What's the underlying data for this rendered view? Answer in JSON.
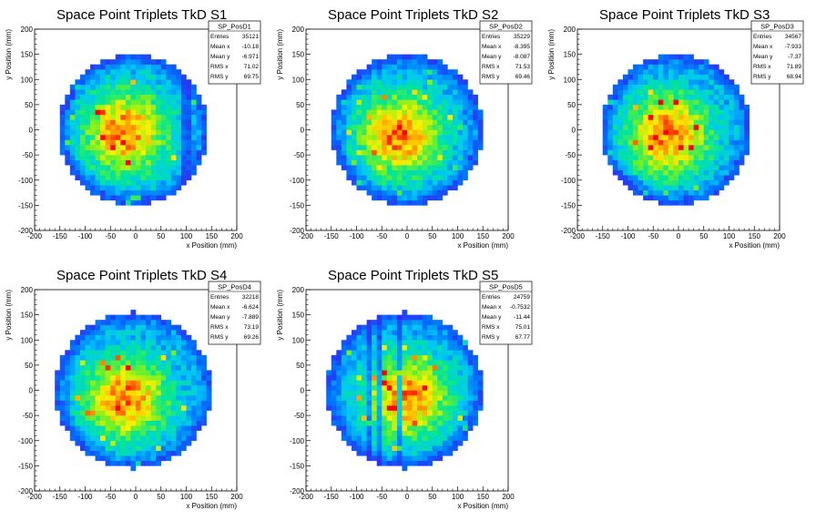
{
  "chart_data": [
    {
      "type": "heatmap",
      "title": "Space Point Triplets TkD S1",
      "xlabel": "x Position (mm)",
      "ylabel": "y Position (mm)",
      "xlim": [
        -200,
        200
      ],
      "ylim": [
        -200,
        200
      ],
      "xticks": [
        -200,
        -150,
        -100,
        -50,
        0,
        50,
        100,
        150,
        200
      ],
      "yticks": [
        -200,
        -150,
        -100,
        -50,
        0,
        50,
        100,
        150,
        200
      ],
      "stats": {
        "name": "SP_PosD1",
        "rows": [
          [
            "Entries",
            "35121"
          ],
          [
            "Mean x",
            "-10.18"
          ],
          [
            "Mean y",
            "-6.971"
          ],
          [
            "RMS x",
            "71.02"
          ],
          [
            "RMS y",
            "69.75"
          ]
        ]
      },
      "occupancy": {
        "radius_mm": 150,
        "center_mm": [
          -5,
          0
        ],
        "peak_mm": [
          -20,
          -5
        ],
        "gaps_x_mm": [
          95,
          105
        ]
      }
    },
    {
      "type": "heatmap",
      "title": "Space Point Triplets TkD S2",
      "xlabel": "x Position (mm)",
      "ylabel": "y Position (mm)",
      "xlim": [
        -200,
        200
      ],
      "ylim": [
        -200,
        200
      ],
      "xticks": [
        -200,
        -150,
        -100,
        -50,
        0,
        50,
        100,
        150,
        200
      ],
      "yticks": [
        -200,
        -150,
        -100,
        -50,
        0,
        50,
        100,
        150,
        200
      ],
      "stats": {
        "name": "SP_PosD2",
        "rows": [
          [
            "Entries",
            "35229"
          ],
          [
            "Mean x",
            "-8.395"
          ],
          [
            "Mean y",
            "-8.087"
          ],
          [
            "RMS x",
            "71.53"
          ],
          [
            "RMS y",
            "69.46"
          ]
        ]
      },
      "occupancy": {
        "radius_mm": 150,
        "center_mm": [
          0,
          0
        ],
        "peak_mm": [
          -15,
          -10
        ],
        "gaps_x_mm": []
      }
    },
    {
      "type": "heatmap",
      "title": "Space Point Triplets TkD S3",
      "xlabel": "x Position (mm)",
      "ylabel": "y Position (mm)",
      "xlim": [
        -200,
        200
      ],
      "ylim": [
        -200,
        200
      ],
      "xticks": [
        -200,
        -150,
        -100,
        -50,
        0,
        50,
        100,
        150,
        200
      ],
      "yticks": [
        -200,
        -150,
        -100,
        -50,
        0,
        50,
        100,
        150,
        200
      ],
      "stats": {
        "name": "SP_PosD3",
        "rows": [
          [
            "Entries",
            "34567"
          ],
          [
            "Mean x",
            "-7.933"
          ],
          [
            "Mean y",
            "-7.37"
          ],
          [
            "RMS x",
            "71.89"
          ],
          [
            "RMS y",
            "68.94"
          ]
        ]
      },
      "occupancy": {
        "radius_mm": 150,
        "center_mm": [
          -5,
          0
        ],
        "peak_mm": [
          -20,
          -10
        ],
        "gaps_x_mm": []
      }
    },
    {
      "type": "heatmap",
      "title": "Space Point Triplets TkD S4",
      "xlabel": "x Position (mm)",
      "ylabel": "y Position (mm)",
      "xlim": [
        -200,
        200
      ],
      "ylim": [
        -200,
        200
      ],
      "xticks": [
        -200,
        -150,
        -100,
        -50,
        0,
        50,
        100,
        150,
        200
      ],
      "yticks": [
        -200,
        -150,
        -100,
        -50,
        0,
        50,
        100,
        150,
        200
      ],
      "stats": {
        "name": "SP_PosD4",
        "rows": [
          [
            "Entries",
            "32218"
          ],
          [
            "Mean x",
            "-6.624"
          ],
          [
            "Mean y",
            "-7.889"
          ],
          [
            "RMS x",
            "73.19"
          ],
          [
            "RMS y",
            "69.26"
          ]
        ]
      },
      "occupancy": {
        "radius_mm": 155,
        "center_mm": [
          -5,
          0
        ],
        "peak_mm": [
          -20,
          -15
        ],
        "gaps_x_mm": []
      }
    },
    {
      "type": "heatmap",
      "title": "Space Point Triplets TkD S5",
      "xlabel": "x Position (mm)",
      "ylabel": "y Position (mm)",
      "xlim": [
        -200,
        200
      ],
      "ylim": [
        -200,
        200
      ],
      "xticks": [
        -200,
        -150,
        -100,
        -50,
        0,
        50,
        100,
        150,
        200
      ],
      "yticks": [
        -200,
        -150,
        -100,
        -50,
        0,
        50,
        100,
        150,
        200
      ],
      "stats": {
        "name": "SP_PosD5",
        "rows": [
          [
            "Entries",
            "24759"
          ],
          [
            "Mean x",
            "-0.7532"
          ],
          [
            "Mean y",
            "-11.44"
          ],
          [
            "RMS x",
            "75.01"
          ],
          [
            "RMS y",
            "67.77"
          ]
        ]
      },
      "occupancy": {
        "radius_mm": 155,
        "center_mm": [
          -5,
          0
        ],
        "peak_mm": [
          0,
          -15
        ],
        "gaps_x_mm": [
          -75,
          -55,
          -15
        ]
      }
    }
  ]
}
